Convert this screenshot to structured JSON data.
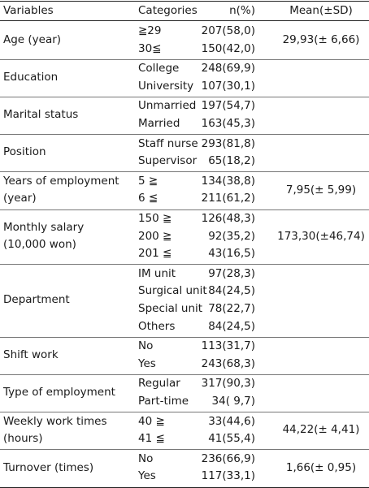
{
  "header": {
    "variables": "Variables",
    "categories": "Categories",
    "n_pct": "n(%)",
    "mean_sd": "Mean(±SD)"
  },
  "groups": [
    {
      "variable": [
        "Age (year)"
      ],
      "rows": [
        {
          "category": "≧29",
          "n": "207(58,0)"
        },
        {
          "category": "30≦",
          "n": "150(42,0)"
        }
      ],
      "mean": "29,93(±  6,66)"
    },
    {
      "variable": [
        "Education"
      ],
      "rows": [
        {
          "category": "College",
          "n": "248(69,9)"
        },
        {
          "category": "University",
          "n": "107(30,1)"
        }
      ],
      "mean": ""
    },
    {
      "variable": [
        "Marital status"
      ],
      "rows": [
        {
          "category": "Unmarried",
          "n": "197(54,7)"
        },
        {
          "category": "Married",
          "n": "163(45,3)"
        }
      ],
      "mean": ""
    },
    {
      "variable": [
        "Position"
      ],
      "rows": [
        {
          "category": "Staff nurse",
          "n": "293(81,8)"
        },
        {
          "category": "Supervisor",
          "n": "65(18,2)"
        }
      ],
      "mean": ""
    },
    {
      "variable": [
        "Years of employment",
        "(year)"
      ],
      "rows": [
        {
          "category": "5  ≧",
          "n": "134(38,8)"
        },
        {
          "category": "6  ≦",
          "n": "211(61,2)"
        }
      ],
      "mean": "7,95(±  5,99)"
    },
    {
      "variable": [
        "Monthly salary",
        "(10,000 won)"
      ],
      "rows": [
        {
          "category": "150  ≧",
          "n": "126(48,3)"
        },
        {
          "category": "200  ≧",
          "n": "92(35,2)"
        },
        {
          "category": "201  ≦",
          "n": "43(16,5)"
        }
      ],
      "mean": "173,30(±46,74)"
    },
    {
      "variable": [
        "Department"
      ],
      "rows": [
        {
          "category": "IM unit",
          "n": "97(28,3)"
        },
        {
          "category": "Surgical unit",
          "n": "84(24,5)"
        },
        {
          "category": "Special unit",
          "n": "78(22,7)"
        },
        {
          "category": "Others",
          "n": "84(24,5)"
        }
      ],
      "mean": ""
    },
    {
      "variable": [
        "Shift work"
      ],
      "rows": [
        {
          "category": "No",
          "n": "113(31,7)"
        },
        {
          "category": "Yes",
          "n": "243(68,3)"
        }
      ],
      "mean": ""
    },
    {
      "variable": [
        "Type of employment"
      ],
      "rows": [
        {
          "category": "Regular",
          "n": "317(90,3)"
        },
        {
          "category": "Part-time",
          "n": "34(  9,7)"
        }
      ],
      "mean": ""
    },
    {
      "variable": [
        "Weekly work times",
        "(hours)"
      ],
      "rows": [
        {
          "category": "40  ≧",
          "n": "33(44,6)"
        },
        {
          "category": "41  ≦",
          "n": "41(55,4)"
        }
      ],
      "mean": "44,22(±  4,41)"
    },
    {
      "variable": [
        "Turnover (times)"
      ],
      "rows": [
        {
          "category": "No",
          "n": "236(66,9)"
        },
        {
          "category": "Yes",
          "n": "117(33,1)"
        }
      ],
      "mean": "1,66(±  0,95)"
    }
  ]
}
